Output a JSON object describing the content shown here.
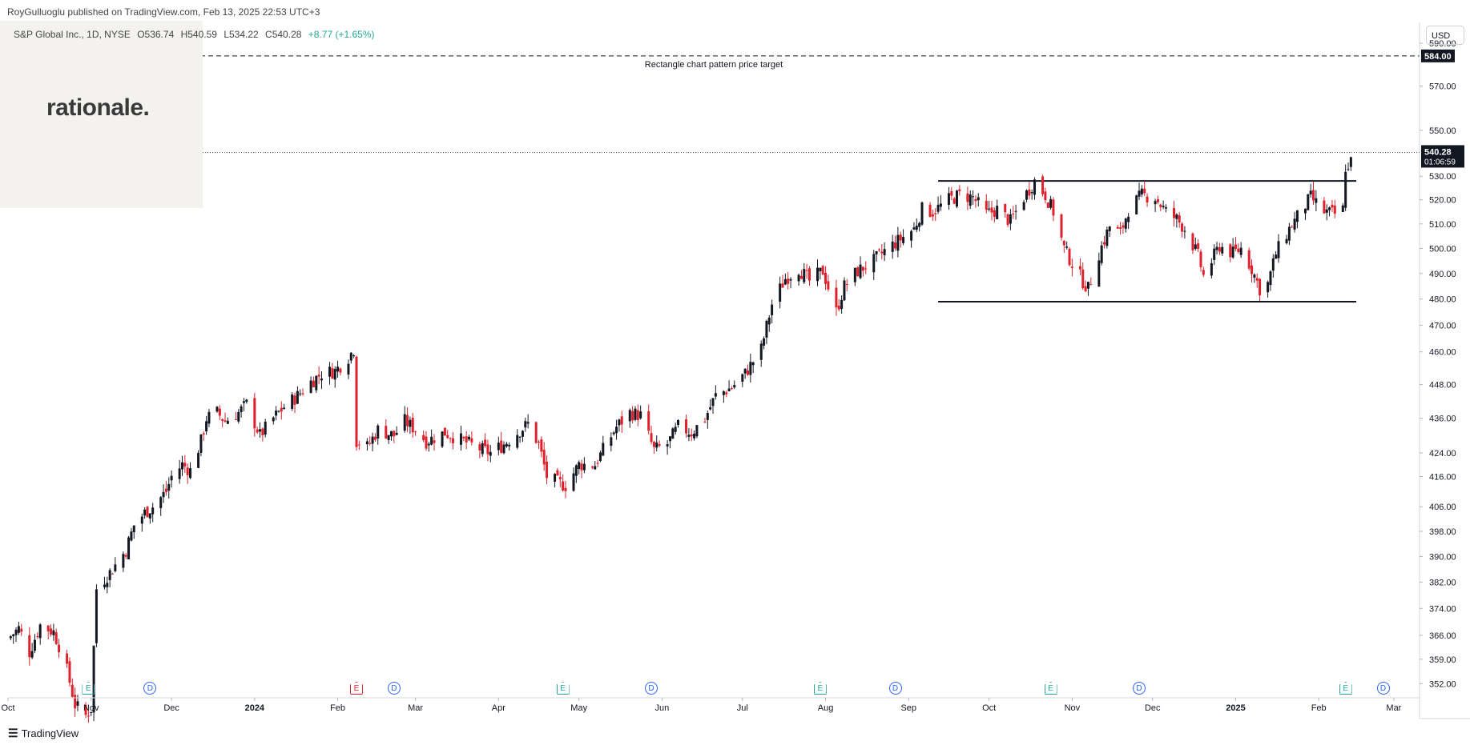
{
  "header": {
    "publisher": "RoyGulluoglu published on TradingView.com,",
    "timestamp": "Feb 13, 2025 22:53 UTC+3"
  },
  "symbol": {
    "name": "S&P Global Inc., 1D, NYSE",
    "open": "O536.74",
    "high": "H540.59",
    "low": "L534.22",
    "close": "C540.28",
    "change": "+8.77 (+1.65%)"
  },
  "logo": {
    "text": "rationale."
  },
  "currency": "USD",
  "annotation": {
    "target_label": "Rectangle chart pattern price target"
  },
  "price_badges": {
    "target": "584.00",
    "last": "540.28",
    "countdown": "01:06:59"
  },
  "footer": {
    "brand": "TradingView",
    "brand_icon": "tv-logo-icon"
  },
  "colors": {
    "up": "#131722",
    "down": "#e0202b",
    "earnings": "#26a69a",
    "dividend": "#2962ff",
    "earnings_neg": "#e0202b"
  },
  "events": [
    {
      "type": "E",
      "date": "2023-10-31",
      "color": "earnings"
    },
    {
      "type": "D",
      "date": "2023-11-23",
      "color": "dividend"
    },
    {
      "type": "E",
      "date": "2024-02-08",
      "color": "earnings_neg"
    },
    {
      "type": "D",
      "date": "2024-02-22",
      "color": "dividend"
    },
    {
      "type": "E",
      "date": "2024-04-25",
      "color": "earnings"
    },
    {
      "type": "D",
      "date": "2024-05-28",
      "color": "dividend"
    },
    {
      "type": "E",
      "date": "2024-07-30",
      "color": "earnings"
    },
    {
      "type": "D",
      "date": "2024-08-27",
      "color": "dividend"
    },
    {
      "type": "E",
      "date": "2024-10-24",
      "color": "earnings"
    },
    {
      "type": "D",
      "date": "2024-11-26",
      "color": "dividend"
    },
    {
      "type": "E",
      "date": "2025-02-11",
      "color": "earnings"
    },
    {
      "type": "D",
      "date": "2025-02-25",
      "color": "dividend"
    }
  ],
  "chart_data": {
    "type": "candlestick",
    "title": "S&P Global Inc., 1D, NYSE",
    "x_range": [
      "2023-10-01",
      "2025-03-10"
    ],
    "y_range": [
      348,
      600
    ],
    "y_scale": "log",
    "x_ticks": [
      {
        "label": "Oct",
        "date": "2023-10-01"
      },
      {
        "label": "Nov",
        "date": "2023-11-01"
      },
      {
        "label": "Dec",
        "date": "2023-12-01"
      },
      {
        "label": "2024",
        "date": "2024-01-01",
        "bold": true
      },
      {
        "label": "Feb",
        "date": "2024-02-01"
      },
      {
        "label": "Mar",
        "date": "2024-03-01"
      },
      {
        "label": "Apr",
        "date": "2024-04-01"
      },
      {
        "label": "May",
        "date": "2024-05-01"
      },
      {
        "label": "Jun",
        "date": "2024-06-01"
      },
      {
        "label": "Jul",
        "date": "2024-07-01"
      },
      {
        "label": "Aug",
        "date": "2024-08-01"
      },
      {
        "label": "Sep",
        "date": "2024-09-01"
      },
      {
        "label": "Oct",
        "date": "2024-10-01"
      },
      {
        "label": "Nov",
        "date": "2024-11-01"
      },
      {
        "label": "Dec",
        "date": "2024-12-01"
      },
      {
        "label": "2025",
        "date": "2025-01-01",
        "bold": true
      },
      {
        "label": "Feb",
        "date": "2025-02-01"
      },
      {
        "label": "Mar",
        "date": "2025-03-01"
      }
    ],
    "y_ticks": [
      352,
      359,
      366,
      374,
      382,
      390,
      398,
      406,
      416,
      424,
      436,
      448,
      460,
      470,
      480,
      490,
      500,
      510,
      520,
      530,
      550,
      570,
      590
    ],
    "y_tick_labels": [
      "352.00",
      "359.00",
      "366.00",
      "374.00",
      "382.00",
      "390.00",
      "398.00",
      "406.00",
      "416.00",
      "424.00",
      "436.00",
      "448.00",
      "460.00",
      "470.00",
      "480.00",
      "490.00",
      "500.00",
      "510.00",
      "520.00",
      "530.00",
      "550.00",
      "570.00",
      "590.00"
    ],
    "close_anchors": [
      [
        "2023-10-01",
        365
      ],
      [
        "2023-10-05",
        368
      ],
      [
        "2023-10-09",
        361
      ],
      [
        "2023-10-13",
        369
      ],
      [
        "2023-10-18",
        367
      ],
      [
        "2023-10-22",
        359
      ],
      [
        "2023-10-26",
        346
      ],
      [
        "2023-10-30",
        343
      ],
      [
        "2023-11-01",
        345
      ],
      [
        "2023-11-03",
        380
      ],
      [
        "2023-11-08",
        385
      ],
      [
        "2023-11-14",
        392
      ],
      [
        "2023-11-17",
        400
      ],
      [
        "2023-11-21",
        404
      ],
      [
        "2023-11-24",
        406
      ],
      [
        "2023-11-29",
        411
      ],
      [
        "2023-12-01",
        416
      ],
      [
        "2023-12-05",
        420
      ],
      [
        "2023-12-08",
        418
      ],
      [
        "2023-12-12",
        428
      ],
      [
        "2023-12-14",
        436
      ],
      [
        "2023-12-18",
        438
      ],
      [
        "2023-12-21",
        435
      ],
      [
        "2023-12-26",
        438
      ],
      [
        "2023-12-29",
        441
      ],
      [
        "2024-01-03",
        430
      ],
      [
        "2024-01-08",
        436
      ],
      [
        "2024-01-12",
        440
      ],
      [
        "2024-01-17",
        444
      ],
      [
        "2024-01-22",
        449
      ],
      [
        "2024-01-26",
        452
      ],
      [
        "2024-01-31",
        453
      ],
      [
        "2024-02-05",
        458
      ],
      [
        "2024-02-07",
        461
      ],
      [
        "2024-02-08",
        428
      ],
      [
        "2024-02-12",
        426
      ],
      [
        "2024-02-16",
        432
      ],
      [
        "2024-02-22",
        430
      ],
      [
        "2024-02-26",
        435
      ],
      [
        "2024-03-01",
        432
      ],
      [
        "2024-03-05",
        428
      ],
      [
        "2024-03-12",
        431
      ],
      [
        "2024-03-19",
        428
      ],
      [
        "2024-03-26",
        425
      ],
      [
        "2024-03-29",
        424
      ],
      [
        "2024-04-03",
        427
      ],
      [
        "2024-04-08",
        431
      ],
      [
        "2024-04-12",
        434
      ],
      [
        "2024-04-16",
        427
      ],
      [
        "2024-04-19",
        416
      ],
      [
        "2024-04-23",
        414
      ],
      [
        "2024-04-26",
        413
      ],
      [
        "2024-05-01",
        420
      ],
      [
        "2024-05-07",
        420
      ],
      [
        "2024-05-10",
        425
      ],
      [
        "2024-05-15",
        433
      ],
      [
        "2024-05-20",
        438
      ],
      [
        "2024-05-24",
        437
      ],
      [
        "2024-05-29",
        425
      ],
      [
        "2024-06-03",
        427
      ],
      [
        "2024-06-07",
        433
      ],
      [
        "2024-06-12",
        431
      ],
      [
        "2024-06-17",
        436
      ],
      [
        "2024-06-21",
        444
      ],
      [
        "2024-06-27",
        447
      ],
      [
        "2024-07-02",
        452
      ],
      [
        "2024-07-08",
        461
      ],
      [
        "2024-07-12",
        478
      ],
      [
        "2024-07-17",
        488
      ],
      [
        "2024-07-22",
        492
      ],
      [
        "2024-07-26",
        487
      ],
      [
        "2024-07-31",
        491
      ],
      [
        "2024-08-05",
        475
      ],
      [
        "2024-08-08",
        485
      ],
      [
        "2024-08-13",
        491
      ],
      [
        "2024-08-19",
        495
      ],
      [
        "2024-08-23",
        499
      ],
      [
        "2024-08-28",
        503
      ],
      [
        "2024-09-03",
        508
      ],
      [
        "2024-09-06",
        516
      ],
      [
        "2024-09-10",
        515
      ],
      [
        "2024-09-16",
        520
      ],
      [
        "2024-09-20",
        522
      ],
      [
        "2024-09-25",
        521
      ],
      [
        "2024-09-30",
        514
      ],
      [
        "2024-10-04",
        516
      ],
      [
        "2024-10-09",
        511
      ],
      [
        "2024-10-14",
        521
      ],
      [
        "2024-10-18",
        528
      ],
      [
        "2024-10-22",
        522
      ],
      [
        "2024-10-25",
        515
      ],
      [
        "2024-10-29",
        500
      ],
      [
        "2024-11-01",
        494
      ],
      [
        "2024-11-05",
        487
      ],
      [
        "2024-11-07",
        484
      ],
      [
        "2024-11-11",
        498
      ],
      [
        "2024-11-15",
        509
      ],
      [
        "2024-11-19",
        506
      ],
      [
        "2024-11-22",
        516
      ],
      [
        "2024-11-27",
        522
      ],
      [
        "2024-12-02",
        521
      ],
      [
        "2024-12-06",
        515
      ],
      [
        "2024-12-10",
        512
      ],
      [
        "2024-12-13",
        508
      ],
      [
        "2024-12-18",
        497
      ],
      [
        "2024-12-20",
        489
      ],
      [
        "2024-12-26",
        501
      ],
      [
        "2024-12-31",
        498
      ],
      [
        "2025-01-03",
        500
      ],
      [
        "2025-01-07",
        492
      ],
      [
        "2025-01-10",
        484
      ],
      [
        "2025-01-13",
        486
      ],
      [
        "2025-01-16",
        498
      ],
      [
        "2025-01-21",
        508
      ],
      [
        "2025-01-24",
        513
      ],
      [
        "2025-01-29",
        521
      ],
      [
        "2025-02-03",
        515
      ],
      [
        "2025-02-07",
        514
      ],
      [
        "2025-02-10",
        516
      ],
      [
        "2025-02-11",
        534
      ],
      [
        "2025-02-12",
        532
      ],
      [
        "2025-02-13",
        540.28
      ]
    ],
    "horizontal_lines": [
      {
        "name": "target",
        "price": 584,
        "style": "dashed",
        "from": "2023-10-01",
        "to": "2025-03-10"
      },
      {
        "name": "last-price",
        "price": 540.28,
        "style": "dotted",
        "from": "2023-10-01",
        "to": "2025-03-10"
      },
      {
        "name": "rectangle-top",
        "price": 528,
        "style": "solid",
        "from": "2024-09-12",
        "to": "2025-02-15"
      },
      {
        "name": "rectangle-bottom",
        "price": 479,
        "style": "solid",
        "from": "2024-09-12",
        "to": "2025-02-15"
      }
    ]
  }
}
